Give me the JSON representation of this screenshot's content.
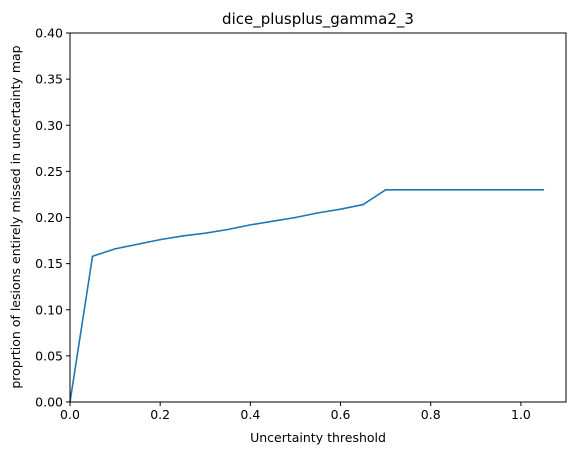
{
  "chart_data": {
    "type": "line",
    "title": "dice_plusplus_gamma2_3",
    "xlabel": "Uncertainty threshold",
    "ylabel": "proprtion of lesions entirely missed in uncertainty map",
    "xlim": [
      0.0,
      1.1
    ],
    "ylim": [
      0.0,
      0.4
    ],
    "xticks": [
      "0.0",
      "0.2",
      "0.4",
      "0.6",
      "0.8",
      "1.0"
    ],
    "yticks": [
      "0.00",
      "0.05",
      "0.10",
      "0.15",
      "0.20",
      "0.25",
      "0.30",
      "0.35",
      "0.40"
    ],
    "grid": false,
    "line_color": "#1f77b4",
    "series": [
      {
        "x": [
          0.0,
          0.05,
          0.1,
          0.15,
          0.2,
          0.25,
          0.3,
          0.35,
          0.4,
          0.45,
          0.5,
          0.55,
          0.6,
          0.65,
          0.7,
          0.75,
          0.8,
          0.85,
          0.9,
          0.95,
          1.0,
          1.05
        ],
        "y": [
          0.0,
          0.158,
          0.166,
          0.171,
          0.176,
          0.18,
          0.183,
          0.187,
          0.192,
          0.196,
          0.2,
          0.205,
          0.209,
          0.214,
          0.23,
          0.23,
          0.23,
          0.23,
          0.23,
          0.23,
          0.23,
          0.23
        ]
      }
    ]
  }
}
